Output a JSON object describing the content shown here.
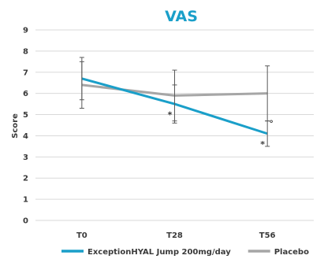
{
  "chart_data": {
    "type": "line",
    "title": "VAS",
    "ylabel": "Score",
    "xlabel": "",
    "categories": [
      "T0",
      "T28",
      "T56"
    ],
    "ylim": [
      0,
      9
    ],
    "yticks": [
      "0",
      "1",
      "2",
      "3",
      "4",
      "5",
      "6",
      "7",
      "8",
      "9"
    ],
    "grid": true,
    "legend_position": "bottom",
    "series": [
      {
        "name": "ExceptionHYAL Jump 200mg/day",
        "color": "#1a9fc9",
        "values": [
          6.7,
          5.5,
          4.1
        ],
        "error_low": [
          5.7,
          4.7,
          3.5
        ],
        "error_high": [
          7.7,
          6.4,
          4.7
        ]
      },
      {
        "name": "Placebo",
        "color": "#a6a6a6",
        "values": [
          6.4,
          5.9,
          6.0
        ],
        "error_low": [
          5.3,
          4.6,
          4.7
        ],
        "error_high": [
          7.5,
          7.1,
          7.3
        ]
      }
    ],
    "annotations": [
      {
        "text": "*",
        "category": "T28",
        "value": 5.0
      },
      {
        "text": "*",
        "category": "T56",
        "value": 3.6
      },
      {
        "text": "°",
        "category": "T56",
        "value": 4.6
      }
    ],
    "title_color": "#1a9fc9"
  }
}
